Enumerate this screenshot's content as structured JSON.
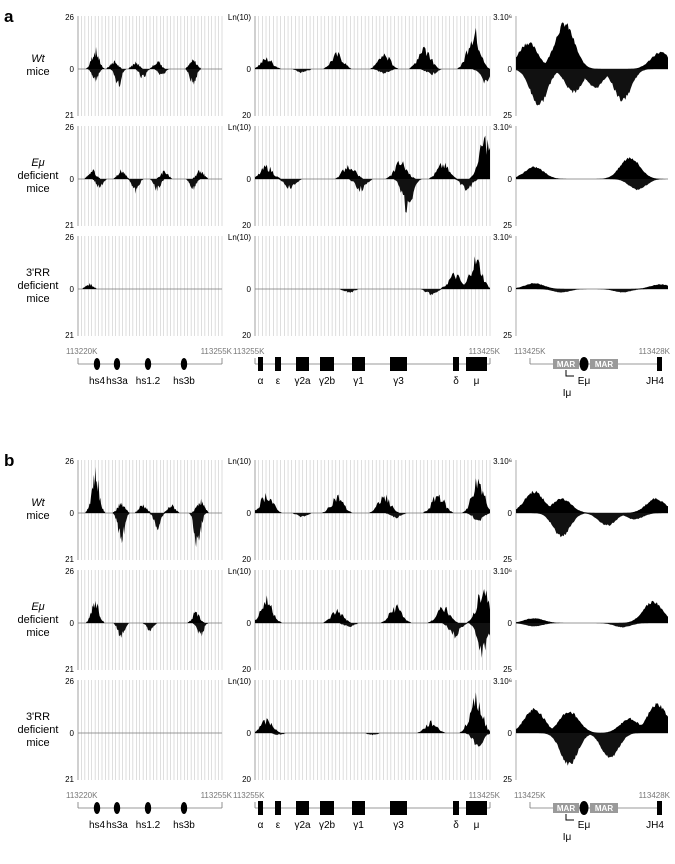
{
  "panels": [
    {
      "label": "a",
      "rows": [
        {
          "label_lines": [
            "Wt",
            "mice"
          ],
          "italic_first": true
        },
        {
          "label_lines": [
            "Eμ",
            "deficient",
            "mice"
          ],
          "italic_first": true
        },
        {
          "label_lines": [
            "3'RR",
            "deficient",
            "mice"
          ],
          "italic_first": false
        }
      ]
    },
    {
      "label": "b",
      "rows": [
        {
          "label_lines": [
            "Wt",
            "mice"
          ],
          "italic_first": true
        },
        {
          "label_lines": [
            "Eμ",
            "deficient",
            "mice"
          ],
          "italic_first": true
        },
        {
          "label_lines": [
            "3'RR",
            "deficient",
            "mice"
          ],
          "italic_first": false
        }
      ]
    }
  ],
  "axis_labels": {
    "col1_top": "26",
    "col1_mid": "0",
    "col1_bottom": "21",
    "col2_top": "Ln(10)",
    "col2_mid": "0",
    "col2_bottom": "20",
    "col3_top": "3.10⁶",
    "col3_mid": "0",
    "col3_bottom": "25"
  },
  "region_maps": [
    {
      "range_start": "113220K",
      "range_end": "113255K",
      "elements": [
        "hs4",
        "hs3a",
        "hs1.2",
        "hs3b"
      ]
    },
    {
      "range_start": "113255K",
      "range_end": "113425K",
      "elements": [
        "α",
        "ε",
        "γ2a",
        "γ2b",
        "γ1",
        "γ3",
        "δ",
        "μ"
      ]
    },
    {
      "range_start": "113425K",
      "range_end": "113428K",
      "mar_left": "MAR",
      "mar_right": "MAR",
      "enhancer": "Eμ",
      "promoter": "Iμ",
      "jh4": "JH4"
    }
  ],
  "chart_data": [
    {
      "type": "area",
      "title": "",
      "panel": "a",
      "columns": [
        {
          "region": "3'RR (113220K–113255K)",
          "y_top": 26,
          "y_bottom": 21,
          "y_axis_label": ""
        },
        {
          "region": "constant genes (113255K–113425K)",
          "y_top": "Ln(10)",
          "y_bottom": 20,
          "y_axis_label": "Ln(10)"
        },
        {
          "region": "Eμ/JH4 (113425K–113428K)",
          "y_top": "3.10⁶",
          "y_bottom": 25,
          "y_axis_label": "3.10⁶"
        }
      ],
      "series": [
        {
          "row": "Wt mice",
          "column": 1,
          "peaks_plus": [
            [
              0.12,
              0.45
            ],
            [
              0.25,
              0.18
            ],
            [
              0.4,
              0.15
            ],
            [
              0.55,
              0.18
            ],
            [
              0.8,
              0.2
            ]
          ],
          "peaks_minus": [
            [
              0.12,
              0.3
            ],
            [
              0.28,
              0.45
            ],
            [
              0.45,
              0.25
            ],
            [
              0.58,
              0.2
            ],
            [
              0.8,
              0.4
            ]
          ]
        },
        {
          "row": "Wt mice",
          "column": 2,
          "peaks_plus": [
            [
              0.05,
              0.25
            ],
            [
              0.35,
              0.35
            ],
            [
              0.55,
              0.35
            ],
            [
              0.72,
              0.55
            ],
            [
              0.93,
              0.9
            ]
          ],
          "peaks_minus": [
            [
              0.2,
              0.1
            ],
            [
              0.55,
              0.12
            ],
            [
              0.75,
              0.15
            ],
            [
              0.98,
              0.35
            ]
          ]
        },
        {
          "row": "Wt mice",
          "column": 3,
          "peaks_plus": [
            [
              0.08,
              0.55
            ],
            [
              0.32,
              0.95
            ],
            [
              0.95,
              0.35
            ]
          ],
          "peaks_minus": [
            [
              0.15,
              0.85
            ],
            [
              0.38,
              0.55
            ],
            [
              0.52,
              0.45
            ],
            [
              0.7,
              0.75
            ]
          ]
        },
        {
          "row": "Eμ deficient mice",
          "column": 1,
          "peaks_plus": [
            [
              0.1,
              0.2
            ],
            [
              0.3,
              0.2
            ],
            [
              0.6,
              0.18
            ],
            [
              0.85,
              0.2
            ]
          ],
          "peaks_minus": [
            [
              0.15,
              0.25
            ],
            [
              0.4,
              0.35
            ],
            [
              0.55,
              0.3
            ],
            [
              0.8,
              0.25
            ]
          ]
        },
        {
          "row": "Eμ deficient mice",
          "column": 2,
          "peaks_plus": [
            [
              0.05,
              0.3
            ],
            [
              0.4,
              0.35
            ],
            [
              0.62,
              0.4
            ],
            [
              0.8,
              0.35
            ],
            [
              0.98,
              0.95
            ]
          ],
          "peaks_minus": [
            [
              0.15,
              0.25
            ],
            [
              0.45,
              0.3
            ],
            [
              0.65,
              0.9
            ],
            [
              0.9,
              0.3
            ]
          ]
        },
        {
          "row": "Eμ deficient mice",
          "column": 3,
          "peaks_plus": [
            [
              0.12,
              0.25
            ],
            [
              0.75,
              0.45
            ]
          ],
          "peaks_minus": [
            [
              0.8,
              0.25
            ]
          ]
        },
        {
          "row": "3'RR deficient mice",
          "column": 1,
          "peaks_plus": [
            [
              0.08,
              0.12
            ]
          ],
          "peaks_minus": []
        },
        {
          "row": "3'RR deficient mice",
          "column": 2,
          "peaks_plus": [
            [
              0.85,
              0.35
            ],
            [
              0.94,
              0.7
            ]
          ],
          "peaks_minus": [
            [
              0.4,
              0.1
            ],
            [
              0.75,
              0.15
            ]
          ]
        },
        {
          "row": "3'RR deficient mice",
          "column": 3,
          "peaks_plus": [
            [
              0.12,
              0.12
            ],
            [
              0.95,
              0.1
            ]
          ],
          "peaks_minus": [
            [
              0.3,
              0.08
            ],
            [
              0.7,
              0.08
            ]
          ]
        }
      ]
    },
    {
      "type": "area",
      "title": "",
      "panel": "b",
      "columns": [
        {
          "region": "3'RR (113220K–113255K)",
          "y_top": 26,
          "y_bottom": 21,
          "y_axis_label": ""
        },
        {
          "region": "constant genes (113255K–113425K)",
          "y_top": "Ln(10)",
          "y_bottom": 20,
          "y_axis_label": "Ln(10)"
        },
        {
          "region": "Eμ/JH4 (113425K–113428K)",
          "y_top": "3.10⁶",
          "y_bottom": 25,
          "y_axis_label": "3.10⁶"
        }
      ],
      "series": [
        {
          "row": "Wt mice",
          "column": 1,
          "peaks_plus": [
            [
              0.12,
              0.95
            ],
            [
              0.3,
              0.25
            ],
            [
              0.45,
              0.2
            ],
            [
              0.65,
              0.18
            ],
            [
              0.85,
              0.3
            ]
          ],
          "peaks_minus": [
            [
              0.3,
              0.75
            ],
            [
              0.55,
              0.4
            ],
            [
              0.83,
              0.9
            ]
          ]
        },
        {
          "row": "Wt mice",
          "column": 2,
          "peaks_plus": [
            [
              0.05,
              0.45
            ],
            [
              0.35,
              0.4
            ],
            [
              0.55,
              0.4
            ],
            [
              0.78,
              0.45
            ],
            [
              0.95,
              0.8
            ]
          ],
          "peaks_minus": [
            [
              0.2,
              0.1
            ],
            [
              0.6,
              0.12
            ],
            [
              0.95,
              0.2
            ]
          ]
        },
        {
          "row": "Wt mice",
          "column": 3,
          "peaks_plus": [
            [
              0.12,
              0.45
            ],
            [
              0.3,
              0.3
            ],
            [
              0.92,
              0.3
            ]
          ],
          "peaks_minus": [
            [
              0.3,
              0.55
            ],
            [
              0.6,
              0.3
            ],
            [
              0.78,
              0.15
            ]
          ]
        },
        {
          "row": "Eμ deficient mice",
          "column": 1,
          "peaks_plus": [
            [
              0.12,
              0.55
            ],
            [
              0.82,
              0.25
            ]
          ],
          "peaks_minus": [
            [
              0.3,
              0.4
            ],
            [
              0.5,
              0.2
            ],
            [
              0.85,
              0.35
            ]
          ]
        },
        {
          "row": "Eμ deficient mice",
          "column": 2,
          "peaks_plus": [
            [
              0.05,
              0.55
            ],
            [
              0.35,
              0.3
            ],
            [
              0.6,
              0.4
            ],
            [
              0.8,
              0.4
            ],
            [
              0.97,
              0.85
            ]
          ],
          "peaks_minus": [
            [
              0.4,
              0.1
            ],
            [
              0.85,
              0.35
            ],
            [
              0.97,
              0.85
            ]
          ]
        },
        {
          "row": "Eμ deficient mice",
          "column": 3,
          "peaks_plus": [
            [
              0.12,
              0.1
            ],
            [
              0.9,
              0.45
            ]
          ],
          "peaks_minus": [
            [
              0.12,
              0.08
            ],
            [
              0.7,
              0.1
            ]
          ]
        },
        {
          "row": "3'RR deficient mice",
          "column": 1,
          "peaks_plus": [],
          "peaks_minus": []
        },
        {
          "row": "3'RR deficient mice",
          "column": 2,
          "peaks_plus": [
            [
              0.05,
              0.3
            ],
            [
              0.75,
              0.25
            ],
            [
              0.94,
              0.9
            ]
          ],
          "peaks_minus": [
            [
              0.1,
              0.05
            ],
            [
              0.5,
              0.05
            ],
            [
              0.95,
              0.35
            ]
          ]
        },
        {
          "row": "3'RR deficient mice",
          "column": 3,
          "peaks_plus": [
            [
              0.12,
              0.5
            ],
            [
              0.35,
              0.45
            ],
            [
              0.75,
              0.3
            ],
            [
              0.93,
              0.6
            ]
          ],
          "peaks_minus": [
            [
              0.35,
              0.75
            ],
            [
              0.62,
              0.6
            ]
          ]
        }
      ]
    }
  ]
}
